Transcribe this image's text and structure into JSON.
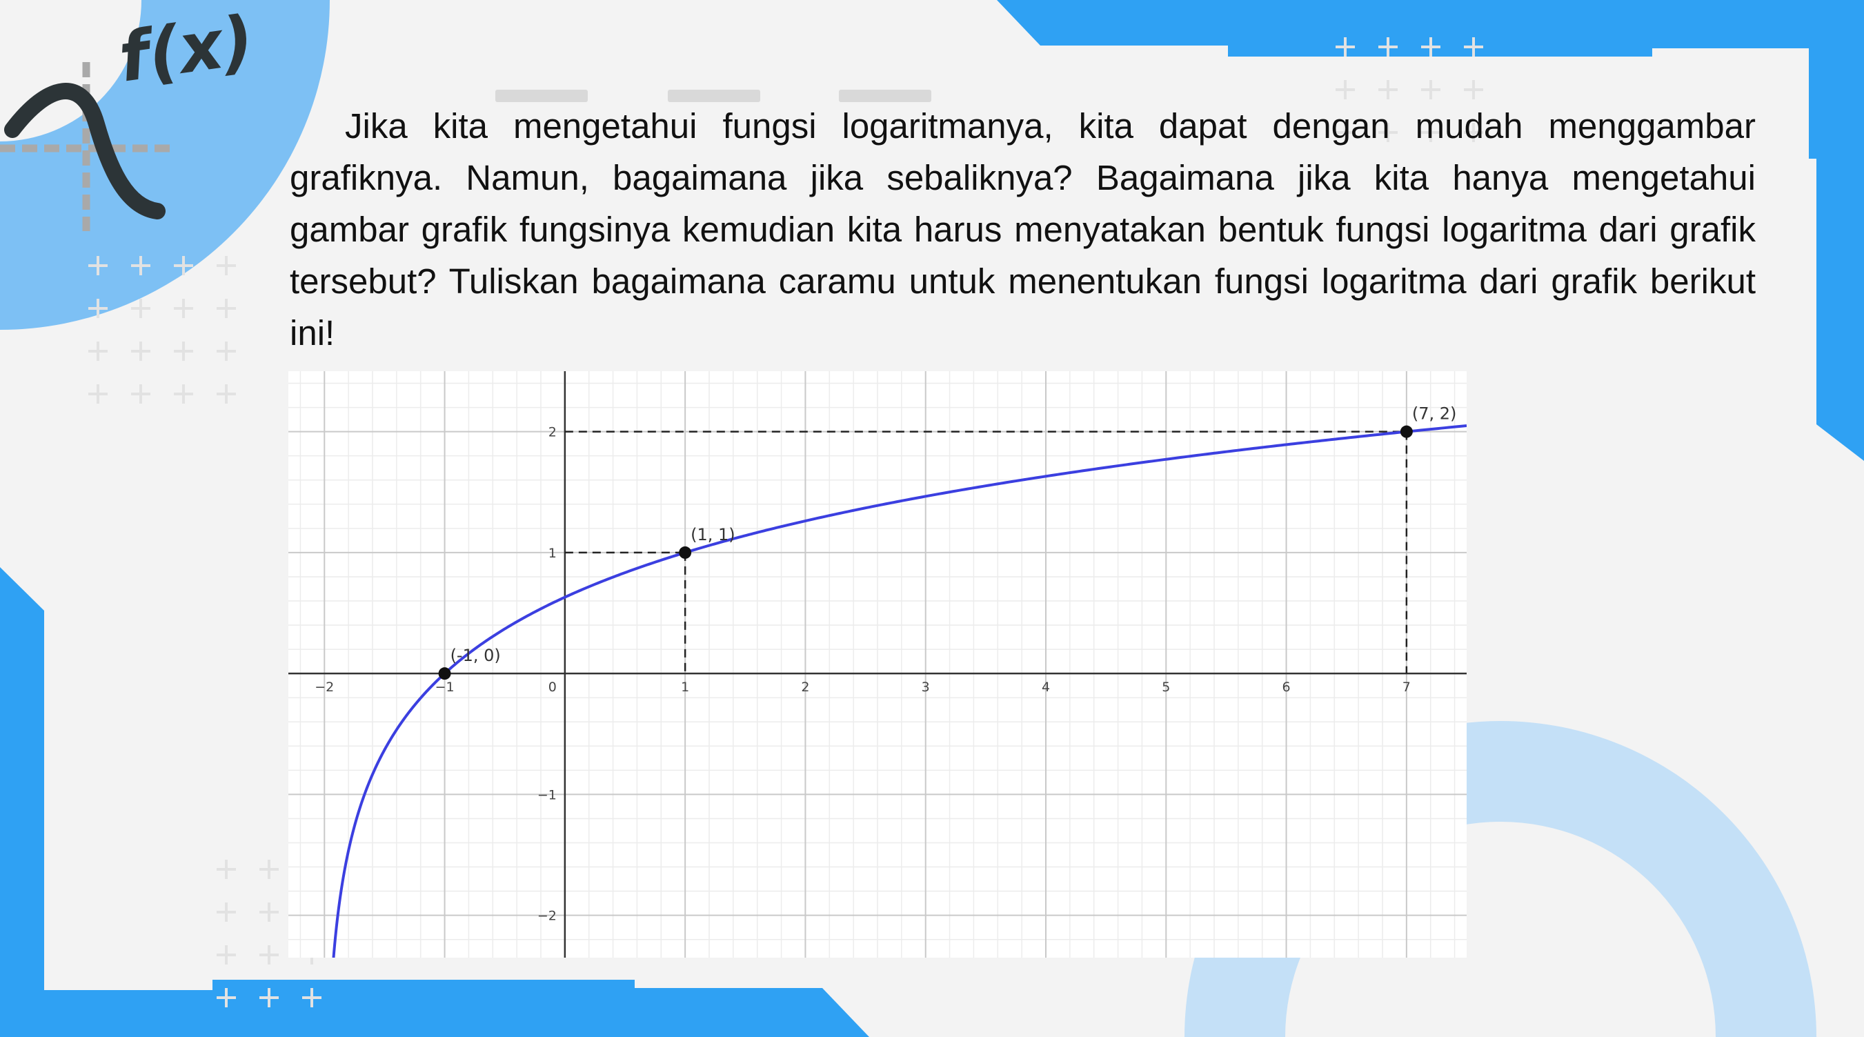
{
  "question": "Jika kita mengetahui fungsi logaritmanya, kita dapat dengan mudah menggambar grafiknya. Namun, bagaimana jika sebaliknya? Bagaimana jika kita hanya mengetahui gambar grafik fungsinya kemudian kita harus menyatakan bentuk fungsi logaritma dari grafik tersebut? Tuliskan bagaimana caramu untuk menentukan fungsi logaritma dari grafik berikut ini!",
  "logo_text": "f(x)",
  "colors": {
    "accent_blue": "#2fa1f3",
    "light_blue": "#7dc0f4",
    "pale_blue": "#c4e0f7",
    "curve": "#3b3fe0",
    "ink": "#2c3437"
  },
  "chart_data": {
    "type": "line",
    "function_form": "y = log3(x + 2)",
    "xlim": [
      -2.3,
      7.5
    ],
    "ylim": [
      -2.35,
      2.5
    ],
    "x_ticks": [
      -2,
      -1,
      0,
      1,
      2,
      3,
      4,
      5,
      6,
      7
    ],
    "x_tick_labels": [
      "−2",
      "−1",
      "0",
      "1",
      "2",
      "3",
      "4",
      "5",
      "6",
      "7"
    ],
    "y_ticks": [
      -2,
      -1,
      1,
      2
    ],
    "y_tick_labels": [
      "−2",
      "−1",
      "1",
      "2"
    ],
    "grid": true,
    "minor_grid_step": 0.2,
    "points": [
      {
        "x": -1,
        "y": 0,
        "label": "(-1, 0)"
      },
      {
        "x": 1,
        "y": 1,
        "label": "(1, 1)"
      },
      {
        "x": 7,
        "y": 2,
        "label": "(7, 2)"
      }
    ],
    "dashed_guides": [
      {
        "x": 1,
        "y": 1
      },
      {
        "x": 7,
        "y": 2
      }
    ]
  }
}
